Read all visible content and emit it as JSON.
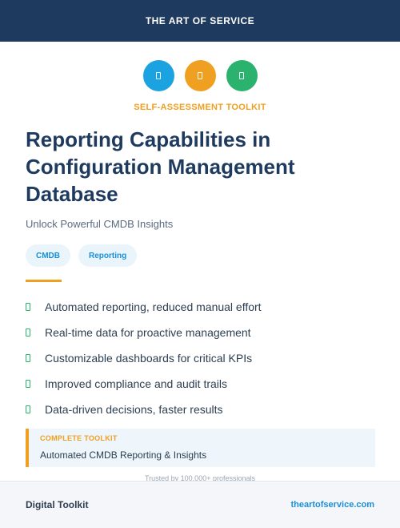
{
  "header": {
    "brand": "THE ART OF SERVICE"
  },
  "icons": [
    {
      "name": "document-icon",
      "color": "#1aa3e0"
    },
    {
      "name": "document-icon",
      "color": "#f0a020"
    },
    {
      "name": "document-icon",
      "color": "#2ab26e"
    }
  ],
  "kicker": "SELF-ASSESSMENT TOOLKIT",
  "title": "Reporting Capabilities in Configuration Management Database",
  "subtitle": "Unlock Powerful CMDB Insights",
  "tags": [
    "CMDB",
    "Reporting"
  ],
  "features": [
    "Automated reporting, reduced manual effort",
    "Real-time data for proactive management",
    "Customizable dashboards for critical KPIs",
    "Improved compliance and audit trails",
    "Data-driven decisions, faster results"
  ],
  "callout": {
    "label": "COMPLETE TOOLKIT",
    "description": "Automated CMDB Reporting & Insights"
  },
  "trusted": "Trusted by 100,000+ professionals",
  "footer": {
    "left": "Digital Toolkit",
    "right": "theartofservice.com"
  }
}
